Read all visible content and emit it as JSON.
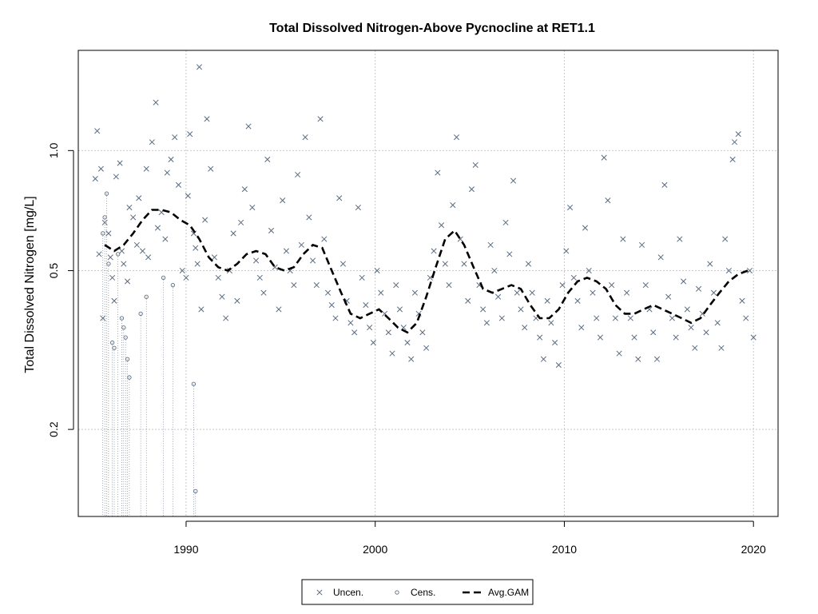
{
  "chart_data": {
    "type": "scatter",
    "title": "Total Dissolved Nitrogen-Above Pycnocline at RET1.1",
    "xlabel": "",
    "ylabel": "Total Dissolved Nitrogen [mg/L]",
    "xlim": [
      1984.3,
      2021.3
    ],
    "ylim": [
      0.121,
      1.783
    ],
    "y_scale": "log",
    "grid": true,
    "x_ticks": [
      1990,
      2000,
      2010,
      2020
    ],
    "y_ticks": [
      0.2,
      0.5,
      1.0
    ],
    "x_tick_labels": [
      "1990",
      "2000",
      "2010",
      "2020"
    ],
    "y_tick_labels": [
      "0.2",
      "0.5",
      "1.0"
    ],
    "colors": {
      "points": "#5a6b80",
      "gam": "#000000",
      "grid": "#c8c8c8"
    },
    "legend": {
      "position": "bottom-center",
      "entries": [
        {
          "label": "Uncen.",
          "symbol": "x"
        },
        {
          "label": "Cens.",
          "symbol": "o"
        },
        {
          "label": "Avg.GAM",
          "symbol": "dash"
        }
      ]
    },
    "series": [
      {
        "name": "Uncen.",
        "marker": "x",
        "points": [
          [
            1985.2,
            0.85
          ],
          [
            1985.3,
            1.12
          ],
          [
            1985.4,
            0.55
          ],
          [
            1985.5,
            0.9
          ],
          [
            1985.6,
            0.38
          ],
          [
            1985.7,
            0.66
          ],
          [
            1985.9,
            0.62
          ],
          [
            1986.0,
            0.54
          ],
          [
            1986.1,
            0.48
          ],
          [
            1986.2,
            0.42
          ],
          [
            1986.3,
            0.86
          ],
          [
            1986.5,
            0.93
          ],
          [
            1986.6,
            0.56
          ],
          [
            1986.7,
            0.52
          ],
          [
            1986.9,
            0.47
          ],
          [
            1987.0,
            0.72
          ],
          [
            1987.2,
            0.68
          ],
          [
            1987.4,
            0.58
          ],
          [
            1987.5,
            0.76
          ],
          [
            1987.7,
            0.56
          ],
          [
            1987.9,
            0.9
          ],
          [
            1988.0,
            0.54
          ],
          [
            1988.2,
            1.05
          ],
          [
            1988.4,
            1.32
          ],
          [
            1988.5,
            0.64
          ],
          [
            1988.7,
            0.7
          ],
          [
            1988.9,
            0.6
          ],
          [
            1989.0,
            0.88
          ],
          [
            1989.2,
            0.95
          ],
          [
            1989.4,
            1.08
          ],
          [
            1989.6,
            0.82
          ],
          [
            1989.8,
            0.5
          ],
          [
            1990.0,
            0.48
          ],
          [
            1990.1,
            0.77
          ],
          [
            1990.2,
            1.1
          ],
          [
            1990.4,
            0.62
          ],
          [
            1990.5,
            0.57
          ],
          [
            1990.6,
            0.52
          ],
          [
            1990.7,
            1.62
          ],
          [
            1990.8,
            0.4
          ],
          [
            1991.0,
            0.67
          ],
          [
            1991.1,
            1.2
          ],
          [
            1991.3,
            0.9
          ],
          [
            1991.5,
            0.54
          ],
          [
            1991.7,
            0.48
          ],
          [
            1991.9,
            0.43
          ],
          [
            1992.1,
            0.38
          ],
          [
            1992.3,
            0.5
          ],
          [
            1992.5,
            0.62
          ],
          [
            1992.7,
            0.42
          ],
          [
            1992.9,
            0.66
          ],
          [
            1993.1,
            0.8
          ],
          [
            1993.3,
            1.15
          ],
          [
            1993.5,
            0.72
          ],
          [
            1993.7,
            0.53
          ],
          [
            1993.9,
            0.48
          ],
          [
            1994.1,
            0.44
          ],
          [
            1994.3,
            0.95
          ],
          [
            1994.5,
            0.63
          ],
          [
            1994.7,
            0.51
          ],
          [
            1994.9,
            0.4
          ],
          [
            1995.1,
            0.75
          ],
          [
            1995.3,
            0.56
          ],
          [
            1995.5,
            0.5
          ],
          [
            1995.7,
            0.46
          ],
          [
            1995.9,
            0.87
          ],
          [
            1996.1,
            0.58
          ],
          [
            1996.3,
            1.08
          ],
          [
            1996.5,
            0.68
          ],
          [
            1996.7,
            0.53
          ],
          [
            1996.9,
            0.46
          ],
          [
            1997.1,
            1.2
          ],
          [
            1997.3,
            0.6
          ],
          [
            1997.5,
            0.44
          ],
          [
            1997.7,
            0.41
          ],
          [
            1997.9,
            0.38
          ],
          [
            1998.1,
            0.76
          ],
          [
            1998.3,
            0.52
          ],
          [
            1998.5,
            0.42
          ],
          [
            1998.7,
            0.37
          ],
          [
            1998.9,
            0.35
          ],
          [
            1999.1,
            0.72
          ],
          [
            1999.3,
            0.48
          ],
          [
            1999.5,
            0.41
          ],
          [
            1999.7,
            0.36
          ],
          [
            1999.9,
            0.33
          ],
          [
            2000.1,
            0.5
          ],
          [
            2000.3,
            0.44
          ],
          [
            2000.5,
            0.39
          ],
          [
            2000.7,
            0.35
          ],
          [
            2000.9,
            0.31
          ],
          [
            2001.1,
            0.46
          ],
          [
            2001.3,
            0.4
          ],
          [
            2001.5,
            0.36
          ],
          [
            2001.7,
            0.33
          ],
          [
            2001.9,
            0.3
          ],
          [
            2002.1,
            0.44
          ],
          [
            2002.3,
            0.39
          ],
          [
            2002.5,
            0.35
          ],
          [
            2002.7,
            0.32
          ],
          [
            2002.9,
            0.48
          ],
          [
            2003.1,
            0.56
          ],
          [
            2003.3,
            0.88
          ],
          [
            2003.5,
            0.65
          ],
          [
            2003.7,
            0.52
          ],
          [
            2003.9,
            0.46
          ],
          [
            2004.1,
            0.73
          ],
          [
            2004.3,
            1.08
          ],
          [
            2004.5,
            0.6
          ],
          [
            2004.7,
            0.52
          ],
          [
            2004.9,
            0.42
          ],
          [
            2005.1,
            0.8
          ],
          [
            2005.3,
            0.92
          ],
          [
            2005.5,
            0.46
          ],
          [
            2005.7,
            0.4
          ],
          [
            2005.9,
            0.37
          ],
          [
            2006.1,
            0.58
          ],
          [
            2006.3,
            0.5
          ],
          [
            2006.5,
            0.43
          ],
          [
            2006.7,
            0.38
          ],
          [
            2006.9,
            0.66
          ],
          [
            2007.1,
            0.55
          ],
          [
            2007.3,
            0.84
          ],
          [
            2007.5,
            0.44
          ],
          [
            2007.7,
            0.4
          ],
          [
            2007.9,
            0.36
          ],
          [
            2008.1,
            0.52
          ],
          [
            2008.3,
            0.44
          ],
          [
            2008.5,
            0.38
          ],
          [
            2008.7,
            0.34
          ],
          [
            2008.9,
            0.3
          ],
          [
            2009.1,
            0.42
          ],
          [
            2009.3,
            0.37
          ],
          [
            2009.5,
            0.33
          ],
          [
            2009.7,
            0.29
          ],
          [
            2009.9,
            0.46
          ],
          [
            2010.1,
            0.56
          ],
          [
            2010.3,
            0.72
          ],
          [
            2010.5,
            0.48
          ],
          [
            2010.7,
            0.42
          ],
          [
            2010.9,
            0.36
          ],
          [
            2011.1,
            0.64
          ],
          [
            2011.3,
            0.5
          ],
          [
            2011.5,
            0.44
          ],
          [
            2011.7,
            0.38
          ],
          [
            2011.9,
            0.34
          ],
          [
            2012.1,
            0.96
          ],
          [
            2012.3,
            0.75
          ],
          [
            2012.5,
            0.46
          ],
          [
            2012.7,
            0.38
          ],
          [
            2012.9,
            0.31
          ],
          [
            2013.1,
            0.6
          ],
          [
            2013.3,
            0.44
          ],
          [
            2013.5,
            0.38
          ],
          [
            2013.7,
            0.34
          ],
          [
            2013.9,
            0.3
          ],
          [
            2014.1,
            0.58
          ],
          [
            2014.3,
            0.46
          ],
          [
            2014.5,
            0.4
          ],
          [
            2014.7,
            0.35
          ],
          [
            2014.9,
            0.3
          ],
          [
            2015.1,
            0.54
          ],
          [
            2015.3,
            0.82
          ],
          [
            2015.5,
            0.43
          ],
          [
            2015.7,
            0.38
          ],
          [
            2015.9,
            0.34
          ],
          [
            2016.1,
            0.6
          ],
          [
            2016.3,
            0.47
          ],
          [
            2016.5,
            0.4
          ],
          [
            2016.7,
            0.36
          ],
          [
            2016.9,
            0.32
          ],
          [
            2017.1,
            0.45
          ],
          [
            2017.3,
            0.39
          ],
          [
            2017.5,
            0.35
          ],
          [
            2017.7,
            0.52
          ],
          [
            2017.9,
            0.44
          ],
          [
            2018.1,
            0.37
          ],
          [
            2018.3,
            0.32
          ],
          [
            2018.5,
            0.6
          ],
          [
            2018.7,
            0.5
          ],
          [
            2018.9,
            0.95
          ],
          [
            2019.0,
            1.05
          ],
          [
            2019.2,
            1.1
          ],
          [
            2019.4,
            0.42
          ],
          [
            2019.6,
            0.38
          ],
          [
            2019.8,
            0.5
          ],
          [
            2020.0,
            0.34
          ]
        ]
      },
      {
        "name": "Cens.",
        "marker": "o",
        "points": [
          [
            1985.6,
            0.62
          ],
          [
            1985.7,
            0.68
          ],
          [
            1985.8,
            0.78
          ],
          [
            1985.9,
            0.52
          ],
          [
            1986.1,
            0.33
          ],
          [
            1986.2,
            0.32
          ],
          [
            1986.4,
            0.55
          ],
          [
            1986.6,
            0.38
          ],
          [
            1986.7,
            0.36
          ],
          [
            1986.8,
            0.34
          ],
          [
            1986.9,
            0.3
          ],
          [
            1987.0,
            0.27
          ],
          [
            1987.6,
            0.39
          ],
          [
            1987.9,
            0.43
          ],
          [
            1988.8,
            0.48
          ],
          [
            1989.3,
            0.46
          ],
          [
            1990.4,
            0.26
          ],
          [
            1990.5,
            0.14
          ]
        ]
      }
    ],
    "gam": {
      "name": "Avg.GAM",
      "points": [
        [
          1985.7,
          0.58
        ],
        [
          1986.2,
          0.56
        ],
        [
          1986.7,
          0.58
        ],
        [
          1987.2,
          0.62
        ],
        [
          1987.7,
          0.67
        ],
        [
          1988.2,
          0.71
        ],
        [
          1988.7,
          0.71
        ],
        [
          1989.2,
          0.7
        ],
        [
          1989.7,
          0.67
        ],
        [
          1990.2,
          0.65
        ],
        [
          1990.7,
          0.6
        ],
        [
          1991.2,
          0.54
        ],
        [
          1991.7,
          0.51
        ],
        [
          1992.2,
          0.5
        ],
        [
          1992.7,
          0.52
        ],
        [
          1993.2,
          0.55
        ],
        [
          1993.7,
          0.56
        ],
        [
          1994.2,
          0.55
        ],
        [
          1994.7,
          0.51
        ],
        [
          1995.2,
          0.5
        ],
        [
          1995.7,
          0.51
        ],
        [
          1996.2,
          0.55
        ],
        [
          1996.7,
          0.58
        ],
        [
          1997.2,
          0.57
        ],
        [
          1997.7,
          0.5
        ],
        [
          1998.2,
          0.44
        ],
        [
          1998.7,
          0.39
        ],
        [
          1999.2,
          0.38
        ],
        [
          1999.7,
          0.39
        ],
        [
          2000.2,
          0.4
        ],
        [
          2000.7,
          0.38
        ],
        [
          2001.2,
          0.36
        ],
        [
          2001.7,
          0.35
        ],
        [
          2002.2,
          0.37
        ],
        [
          2002.7,
          0.43
        ],
        [
          2003.2,
          0.51
        ],
        [
          2003.7,
          0.6
        ],
        [
          2004.2,
          0.63
        ],
        [
          2004.7,
          0.58
        ],
        [
          2005.2,
          0.51
        ],
        [
          2005.7,
          0.45
        ],
        [
          2006.2,
          0.44
        ],
        [
          2006.7,
          0.45
        ],
        [
          2007.2,
          0.46
        ],
        [
          2007.7,
          0.45
        ],
        [
          2008.2,
          0.41
        ],
        [
          2008.7,
          0.38
        ],
        [
          2009.2,
          0.38
        ],
        [
          2009.7,
          0.4
        ],
        [
          2010.2,
          0.44
        ],
        [
          2010.7,
          0.47
        ],
        [
          2011.2,
          0.48
        ],
        [
          2011.7,
          0.47
        ],
        [
          2012.2,
          0.45
        ],
        [
          2012.7,
          0.41
        ],
        [
          2013.2,
          0.39
        ],
        [
          2013.7,
          0.39
        ],
        [
          2014.2,
          0.4
        ],
        [
          2014.7,
          0.41
        ],
        [
          2015.2,
          0.4
        ],
        [
          2015.7,
          0.39
        ],
        [
          2016.2,
          0.38
        ],
        [
          2016.7,
          0.37
        ],
        [
          2017.2,
          0.38
        ],
        [
          2017.7,
          0.41
        ],
        [
          2018.2,
          0.44
        ],
        [
          2018.7,
          0.47
        ],
        [
          2019.2,
          0.49
        ],
        [
          2019.7,
          0.5
        ]
      ]
    }
  }
}
